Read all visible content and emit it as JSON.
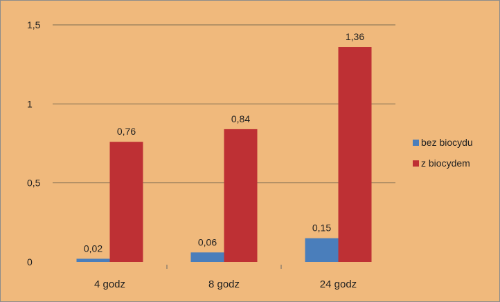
{
  "chart_data": {
    "type": "bar",
    "title": "",
    "xlabel": "",
    "ylabel": "",
    "categories": [
      "4 godz",
      "8 godz",
      "24 godz"
    ],
    "series": [
      {
        "name": "bez biocydu",
        "values": [
          0.02,
          0.06,
          0.15
        ],
        "labels": [
          "0,02",
          "0,06",
          "0,15"
        ],
        "color": "#4a7ebb"
      },
      {
        "name": "z biocydem",
        "values": [
          0.76,
          0.84,
          1.36
        ],
        "labels": [
          "0,76",
          "0,84",
          "1,36"
        ],
        "color": "#be3034"
      }
    ],
    "ylim": [
      0,
      1.5
    ],
    "yticks": [
      0,
      0.5,
      1,
      1.5
    ],
    "ytick_labels": [
      "0",
      "0,5",
      "1",
      "1,5"
    ],
    "gridlines": "horizontal",
    "legend_position": "right",
    "colors": {
      "background": "#f0b97c",
      "grid": "#7a6a50"
    }
  }
}
